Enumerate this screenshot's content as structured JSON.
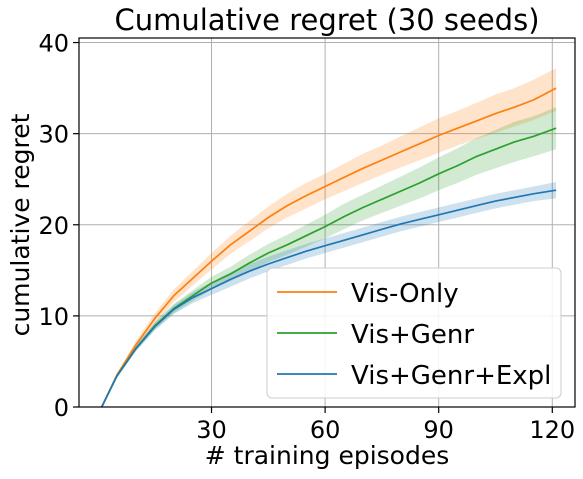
{
  "chart_data": {
    "type": "line",
    "title": "Cumulative regret (30 seeds)",
    "xlabel": "# training episodes",
    "ylabel": "cumulative regret",
    "xlim": [
      -5,
      126
    ],
    "ylim": [
      0,
      40.5
    ],
    "xticks": [
      30,
      60,
      90,
      120
    ],
    "xtick_labels": [
      "30",
      "60",
      "90",
      "120"
    ],
    "yticks": [
      0,
      10,
      20,
      30,
      40
    ],
    "ytick_labels": [
      "0",
      "10",
      "20",
      "30",
      "40"
    ],
    "grid": true,
    "legend_position": "lower-right",
    "series": [
      {
        "name": "Vis-Only",
        "color": "#ff7f0e",
        "x": [
          1,
          5,
          10,
          15,
          20,
          25,
          30,
          35,
          40,
          45,
          50,
          55,
          60,
          65,
          70,
          75,
          80,
          85,
          90,
          95,
          100,
          105,
          110,
          115,
          121
        ],
        "values": [
          0,
          3.5,
          6.8,
          9.7,
          12.2,
          14.1,
          16.0,
          17.8,
          19.3,
          20.8,
          22.1,
          23.2,
          24.2,
          25.2,
          26.2,
          27.1,
          28.0,
          28.9,
          29.8,
          30.6,
          31.4,
          32.2,
          32.9,
          33.7,
          35.0
        ],
        "lower": [
          0,
          3.3,
          6.4,
          9.1,
          11.5,
          13.3,
          15.1,
          16.8,
          18.2,
          19.6,
          20.8,
          21.8,
          22.8,
          23.7,
          24.6,
          25.5,
          26.3,
          27.1,
          27.9,
          28.7,
          29.4,
          30.1,
          30.8,
          31.5,
          32.5
        ],
        "upper": [
          0,
          3.7,
          7.2,
          10.3,
          12.9,
          14.9,
          16.9,
          18.8,
          20.4,
          22.0,
          23.4,
          24.6,
          25.6,
          26.7,
          27.8,
          28.7,
          29.7,
          30.7,
          31.7,
          32.5,
          33.4,
          34.3,
          35.0,
          35.9,
          37.2
        ]
      },
      {
        "name": "Vis+Genr",
        "color": "#2ca02c",
        "x": [
          1,
          5,
          10,
          15,
          20,
          25,
          30,
          35,
          40,
          45,
          50,
          55,
          60,
          65,
          70,
          75,
          80,
          85,
          90,
          95,
          100,
          105,
          110,
          115,
          121
        ],
        "values": [
          0,
          3.4,
          6.4,
          8.9,
          10.8,
          12.2,
          13.6,
          14.6,
          15.8,
          16.9,
          17.8,
          18.8,
          19.8,
          20.9,
          21.9,
          22.8,
          23.7,
          24.6,
          25.6,
          26.5,
          27.5,
          28.3,
          29.1,
          29.7,
          30.6
        ],
        "lower": [
          0,
          3.2,
          6.1,
          8.5,
          10.3,
          11.6,
          12.9,
          13.8,
          14.9,
          15.9,
          16.7,
          17.6,
          18.5,
          19.5,
          20.5,
          21.3,
          22.1,
          22.9,
          23.8,
          24.6,
          25.5,
          26.2,
          26.9,
          27.5,
          28.3
        ],
        "upper": [
          0,
          3.6,
          6.7,
          9.3,
          11.3,
          12.8,
          14.3,
          15.4,
          16.7,
          17.9,
          18.9,
          20.0,
          21.1,
          22.3,
          23.3,
          24.3,
          25.3,
          26.3,
          27.4,
          28.4,
          29.5,
          30.4,
          31.3,
          31.9,
          32.9
        ]
      },
      {
        "name": "Vis+Genr+Expl",
        "color": "#1f77b4",
        "x": [
          1,
          5,
          10,
          15,
          20,
          25,
          30,
          35,
          40,
          45,
          50,
          55,
          60,
          65,
          70,
          75,
          80,
          85,
          90,
          95,
          100,
          105,
          110,
          115,
          121
        ],
        "values": [
          0,
          3.4,
          6.4,
          8.8,
          10.7,
          12.0,
          13.0,
          14.0,
          14.9,
          15.7,
          16.4,
          17.1,
          17.7,
          18.3,
          18.9,
          19.5,
          20.1,
          20.6,
          21.1,
          21.6,
          22.1,
          22.6,
          23.0,
          23.4,
          23.8
        ],
        "lower": [
          0,
          3.2,
          6.1,
          8.4,
          10.2,
          11.4,
          12.3,
          13.2,
          14.1,
          14.9,
          15.6,
          16.3,
          16.9,
          17.5,
          18.1,
          18.7,
          19.3,
          19.8,
          20.3,
          20.8,
          21.3,
          21.8,
          22.2,
          22.6,
          22.9
        ],
        "upper": [
          0,
          3.6,
          6.7,
          9.2,
          11.2,
          12.6,
          13.7,
          14.8,
          15.7,
          16.5,
          17.2,
          17.9,
          18.5,
          19.1,
          19.7,
          20.3,
          20.9,
          21.4,
          21.9,
          22.4,
          22.9,
          23.4,
          23.8,
          24.2,
          24.7
        ]
      }
    ]
  }
}
